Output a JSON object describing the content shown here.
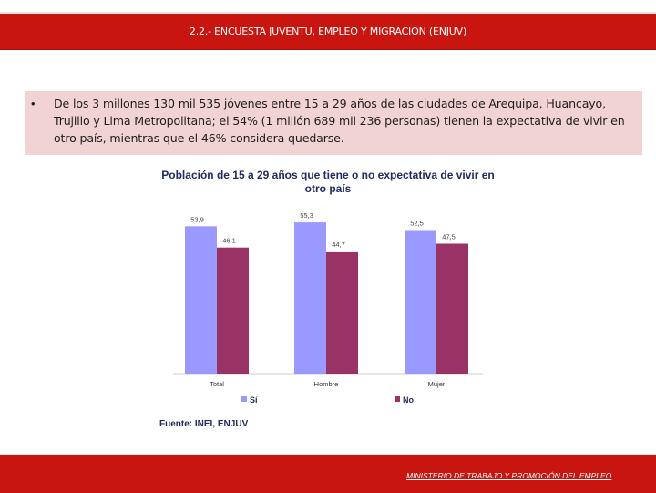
{
  "header": {
    "title": "2.2.- ENCUESTA JUVENTU, EMPLEO Y MIGRACIÓN (ENJUV)"
  },
  "body": {
    "bullet": "•",
    "paragraph": "De los 3 millones 130 mil 535 jóvenes entre 15 a 29 años de las ciudades de Arequipa, Huancayo, Trujillo y Lima Metropolitana; el 54% (1 millón 689 mil 236 personas) tienen la expectativa de vivir en otro país, mientras que el 46% considera quedarse."
  },
  "chart_data": {
    "type": "bar",
    "title": "Población de 15 a 29 años que tiene o no expectativa de vivir en otro país",
    "categories": [
      "Total",
      "Hombre",
      "Mujer"
    ],
    "series": [
      {
        "name": "Sí",
        "values": [
          53.9,
          55.3,
          52.5
        ],
        "labels": [
          "53,9",
          "55,3",
          "52,5"
        ],
        "color": "#9999ff"
      },
      {
        "name": "No",
        "values": [
          46.1,
          44.7,
          47.5
        ],
        "labels": [
          "46,1",
          "44,7",
          "47,5"
        ],
        "color": "#993366"
      }
    ],
    "ylim": [
      0,
      60
    ],
    "grid": false,
    "legend": "bottom",
    "source": "Fuente: INEI, ENJUV"
  },
  "footer": {
    "text": "MINISTERIO DE TRABAJO Y PROMOCIÓN DEL EMPLEO"
  }
}
